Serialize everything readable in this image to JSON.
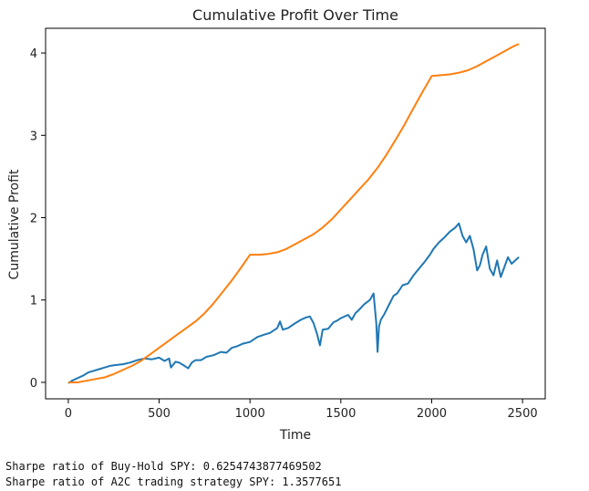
{
  "chart_data": {
    "type": "line",
    "title": "Cumulative Profit Over Time",
    "xlabel": "Time",
    "ylabel": "Cumulative Profit",
    "xlim": [
      -125,
      2625
    ],
    "ylim": [
      -0.2,
      4.3
    ],
    "xticks": [
      0,
      500,
      1000,
      1500,
      2000,
      2500
    ],
    "yticks": [
      0,
      1,
      2,
      3,
      4
    ],
    "grid": false,
    "legend": "none",
    "series": [
      {
        "color": "#1f77b4",
        "x": [
          0,
          20,
          50,
          80,
          110,
          140,
          170,
          200,
          230,
          260,
          300,
          340,
          380,
          420,
          460,
          500,
          530,
          555,
          565,
          590,
          610,
          640,
          660,
          680,
          700,
          730,
          760,
          800,
          840,
          870,
          900,
          930,
          960,
          1000,
          1040,
          1080,
          1110,
          1150,
          1165,
          1180,
          1210,
          1250,
          1280,
          1310,
          1330,
          1350,
          1370,
          1385,
          1400,
          1430,
          1460,
          1480,
          1500,
          1540,
          1560,
          1580,
          1600,
          1630,
          1660,
          1680,
          1695,
          1702,
          1710,
          1720,
          1740,
          1760,
          1790,
          1810,
          1840,
          1870,
          1900,
          1930,
          1960,
          1990,
          2010,
          2040,
          2070,
          2100,
          2130,
          2150,
          2170,
          2190,
          2210,
          2230,
          2250,
          2265,
          2280,
          2300,
          2320,
          2340,
          2360,
          2380,
          2400,
          2420,
          2440,
          2460,
          2480
        ],
        "y": [
          -0.01,
          0.02,
          0.05,
          0.08,
          0.12,
          0.14,
          0.16,
          0.18,
          0.2,
          0.21,
          0.22,
          0.24,
          0.27,
          0.29,
          0.28,
          0.3,
          0.26,
          0.29,
          0.18,
          0.25,
          0.24,
          0.2,
          0.17,
          0.24,
          0.27,
          0.27,
          0.31,
          0.33,
          0.37,
          0.36,
          0.42,
          0.44,
          0.47,
          0.49,
          0.55,
          0.58,
          0.6,
          0.66,
          0.74,
          0.64,
          0.66,
          0.72,
          0.76,
          0.79,
          0.8,
          0.72,
          0.58,
          0.45,
          0.64,
          0.65,
          0.73,
          0.75,
          0.78,
          0.82,
          0.76,
          0.84,
          0.88,
          0.95,
          1.0,
          1.08,
          0.72,
          0.37,
          0.68,
          0.76,
          0.83,
          0.92,
          1.05,
          1.08,
          1.18,
          1.2,
          1.3,
          1.38,
          1.46,
          1.55,
          1.62,
          1.7,
          1.76,
          1.83,
          1.88,
          1.93,
          1.78,
          1.7,
          1.78,
          1.62,
          1.36,
          1.42,
          1.55,
          1.65,
          1.38,
          1.3,
          1.48,
          1.28,
          1.4,
          1.52,
          1.44,
          1.48,
          1.52
        ]
      },
      {
        "color": "#ff7f0e",
        "x": [
          0,
          50,
          100,
          150,
          200,
          250,
          300,
          350,
          400,
          450,
          500,
          550,
          600,
          650,
          700,
          750,
          800,
          850,
          900,
          950,
          1000,
          1050,
          1100,
          1150,
          1200,
          1250,
          1300,
          1350,
          1400,
          1450,
          1500,
          1550,
          1600,
          1650,
          1700,
          1750,
          1800,
          1850,
          1900,
          1950,
          2000,
          2050,
          2100,
          2150,
          2200,
          2250,
          2300,
          2350,
          2400,
          2450,
          2480
        ],
        "y": [
          0.0,
          0.0,
          0.02,
          0.04,
          0.06,
          0.1,
          0.15,
          0.2,
          0.26,
          0.34,
          0.42,
          0.5,
          0.58,
          0.66,
          0.74,
          0.84,
          0.96,
          1.1,
          1.24,
          1.39,
          1.55,
          1.55,
          1.56,
          1.58,
          1.62,
          1.68,
          1.74,
          1.8,
          1.88,
          1.98,
          2.1,
          2.22,
          2.34,
          2.46,
          2.6,
          2.76,
          2.94,
          3.13,
          3.33,
          3.53,
          3.72,
          3.73,
          3.74,
          3.76,
          3.79,
          3.84,
          3.9,
          3.96,
          4.02,
          4.08,
          4.11
        ]
      }
    ]
  },
  "output_lines": [
    "Sharpe ratio of Buy-Hold SPY: 0.6254743877469502",
    "Sharpe ratio of A2C trading strategy SPY: 1.3577651"
  ]
}
